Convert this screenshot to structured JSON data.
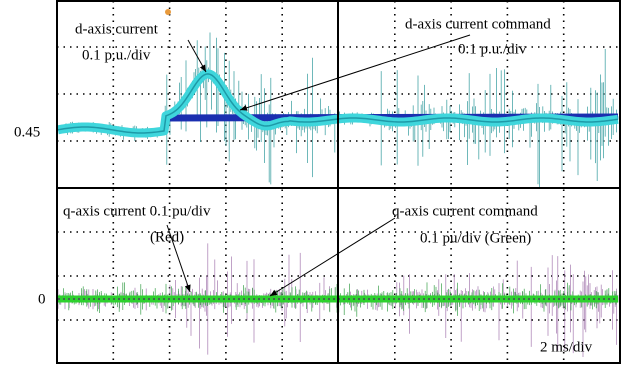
{
  "annotations": {
    "d_current": "d-axis current",
    "d_current_scale": "0.1 p.u./div",
    "d_command": "d-axis current command",
    "d_command_scale": "0.1 p.u./div",
    "q_current": "q-axis current 0.1 pu/div",
    "q_current_color": "(Red)",
    "q_command": "q-axis current command",
    "q_command_scale": "0.1 pu/div (Green)"
  },
  "level_labels": {
    "d_level": "0.45",
    "q_level": "0"
  },
  "time_scale": "2 ms/div"
}
